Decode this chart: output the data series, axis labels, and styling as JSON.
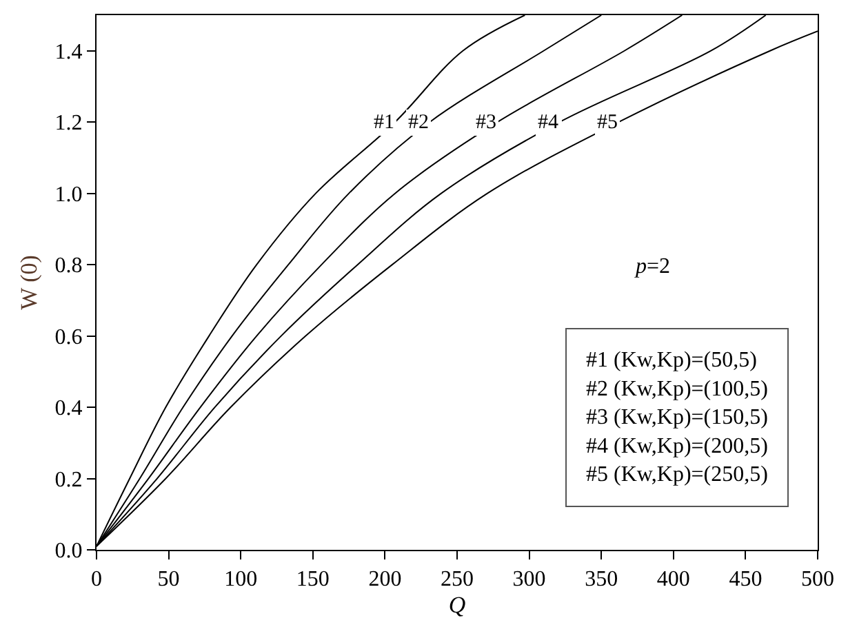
{
  "chart_data": {
    "type": "line",
    "xlabel": "Q",
    "ylabel": "W (0)",
    "xlim": [
      0,
      500
    ],
    "ylim": [
      0,
      1.5
    ],
    "xticks": [
      0,
      50,
      100,
      150,
      200,
      250,
      300,
      350,
      400,
      450,
      500
    ],
    "yticks": [
      {
        "value": 0,
        "label": "0.0"
      },
      {
        "value": 0.2,
        "label": "0.2"
      },
      {
        "value": 0.4,
        "label": "0.4"
      },
      {
        "value": 0.6,
        "label": "0.6"
      },
      {
        "value": 0.8,
        "label": "0.8"
      },
      {
        "value": 1.0,
        "label": "1.0"
      },
      {
        "value": 1.2,
        "label": "1.2"
      },
      {
        "value": 1.4,
        "label": "1.4"
      }
    ],
    "legend": false,
    "marker": "none",
    "line_style": "solid",
    "series": [
      {
        "name": "#1",
        "color": "#000000",
        "x": [
          0,
          23,
          48,
          78,
          111,
          152,
          207,
          254,
          297
        ],
        "values": [
          0.01,
          0.2,
          0.4,
          0.6,
          0.8,
          1.0,
          1.2,
          1.4,
          1.5
        ]
      },
      {
        "name": "#2",
        "color": "#000000",
        "x": [
          0,
          30,
          60,
          94,
          133,
          175,
          231,
          310,
          350
        ],
        "values": [
          0.01,
          0.2,
          0.4,
          0.6,
          0.8,
          1.0,
          1.2,
          1.4,
          1.5
        ]
      },
      {
        "name": "#3",
        "color": "#000000",
        "x": [
          0,
          36,
          72,
          111,
          156,
          207,
          278,
          366,
          406
        ],
        "values": [
          0.01,
          0.2,
          0.4,
          0.6,
          0.8,
          1.0,
          1.2,
          1.4,
          1.5
        ]
      },
      {
        "name": "#4",
        "color": "#000000",
        "x": [
          0,
          42,
          82,
          128,
          181,
          239,
          321,
          426,
          464
        ],
        "values": [
          0.01,
          0.2,
          0.4,
          0.6,
          0.8,
          1.0,
          1.2,
          1.4,
          1.5
        ]
      },
      {
        "name": "#5",
        "color": "#000000",
        "x": [
          0,
          48,
          93,
          145,
          205,
          271,
          362,
          467,
          500
        ],
        "values": [
          0.01,
          0.2,
          0.4,
          0.6,
          0.8,
          1.0,
          1.2,
          1.4,
          1.455
        ]
      }
    ],
    "annotations": [
      "p=2",
      "#1 (Kw,Kp)=(50,5)\n#2 (Kw,Kp)=(100,5)\n#3 (Kw,Kp)=(150,5)\n#4 (Kw,Kp)=(200,5)\n#5 (Kw,Kp)=(250,5)"
    ]
  }
}
